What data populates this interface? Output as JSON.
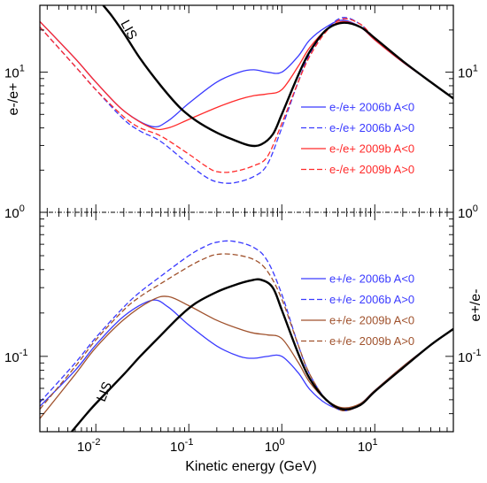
{
  "chart_data": {
    "type": "line",
    "xlabel": "Kinetic energy (GeV)",
    "x_scale": "log",
    "xlim": [
      0.0025,
      70
    ],
    "x_ticks": [
      {
        "value": 0.01,
        "base": "10",
        "exp": "-2"
      },
      {
        "value": 0.1,
        "base": "10",
        "exp": "-1"
      },
      {
        "value": 1,
        "base": "10",
        "exp": "0"
      },
      {
        "value": 10,
        "base": "10",
        "exp": "1"
      }
    ],
    "grid": false,
    "reference_line": {
      "y": 1,
      "style": "dash-dot"
    },
    "colors": {
      "y2006": "#3a3aff",
      "y2009_top": "#ff2a2a",
      "y2009_bottom": "#a0522d",
      "lis": "#000000"
    },
    "panels": [
      {
        "id": "top",
        "ylabel": "e-/e+",
        "y_scale": "log",
        "ylim": [
          1,
          30
        ],
        "y_ticks": [
          {
            "value": 1,
            "base": "10",
            "exp": "0"
          },
          {
            "value": 10,
            "base": "10",
            "exp": "1"
          }
        ],
        "lis_label": "LIS",
        "series": [
          {
            "name": "e-/e+ 2006b A<0",
            "color": "#3a3aff",
            "dash": false,
            "x": [
              0.0025,
              0.006,
              0.01,
              0.02,
              0.04,
              0.06,
              0.1,
              0.2,
              0.35,
              0.5,
              0.7,
              1.0,
              1.5,
              2,
              3,
              4.5,
              7,
              10,
              20,
              40,
              70
            ],
            "y": [
              23,
              12.5,
              8.5,
              5.3,
              4.1,
              4.5,
              6.0,
              8.5,
              10.0,
              10.4,
              10.0,
              10.0,
              13,
              17,
              21,
              23.5,
              21,
              17,
              11.8,
              8.5,
              6.5
            ]
          },
          {
            "name": "e-/e+ 2006b A>0",
            "color": "#3a3aff",
            "dash": true,
            "x": [
              0.0025,
              0.006,
              0.01,
              0.02,
              0.03,
              0.05,
              0.1,
              0.15,
              0.2,
              0.3,
              0.5,
              0.7,
              1.0,
              1.5,
              2,
              3,
              4.5,
              7,
              10,
              20,
              40,
              70
            ],
            "y": [
              21,
              11,
              7.5,
              4.6,
              3.8,
              3.2,
              2.2,
              1.8,
              1.65,
              1.62,
              1.8,
              2.2,
              4.0,
              8.5,
              13.5,
              20,
              24.5,
              22,
              17.5,
              12,
              8.5,
              6.5
            ]
          },
          {
            "name": "e-/e+ 2009b A<0",
            "color": "#ff2a2a",
            "dash": false,
            "x": [
              0.0025,
              0.006,
              0.01,
              0.02,
              0.04,
              0.06,
              0.1,
              0.2,
              0.35,
              0.5,
              0.7,
              1.0,
              1.5,
              2,
              3,
              4.5,
              7,
              10,
              20,
              40,
              70
            ],
            "y": [
              23,
              12.5,
              8.5,
              5.3,
              4.0,
              4.0,
              4.6,
              5.6,
              6.4,
              6.8,
              7.0,
              7.5,
              11,
              15,
              20,
              23,
              21,
              17,
              11.8,
              8.5,
              6.5
            ]
          },
          {
            "name": "e-/e+ 2009b A>0",
            "color": "#ff2a2a",
            "dash": true,
            "x": [
              0.0025,
              0.006,
              0.01,
              0.02,
              0.03,
              0.05,
              0.1,
              0.15,
              0.2,
              0.3,
              0.5,
              0.7,
              1.0,
              1.5,
              2,
              3,
              4.5,
              7,
              10,
              20,
              40,
              70
            ],
            "y": [
              21,
              11,
              7.5,
              4.8,
              4.0,
              3.5,
              2.6,
              2.15,
              1.95,
              1.95,
              2.15,
              2.5,
              4.3,
              8.5,
              13,
              19.5,
              24,
              22,
              17.5,
              12,
              8.5,
              6.5
            ]
          },
          {
            "name": "",
            "color": "#000000",
            "dash": false,
            "lis": true,
            "x": [
              0.012,
              0.015,
              0.02,
              0.03,
              0.05,
              0.08,
              0.12,
              0.2,
              0.3,
              0.45,
              0.6,
              0.8,
              1.0,
              1.5,
              2,
              3,
              4.5,
              7,
              10,
              20,
              40,
              70
            ],
            "y": [
              30,
              25,
              19,
              12.5,
              8.0,
              5.6,
              4.5,
              3.7,
              3.3,
              3.0,
              3.05,
              3.6,
              5.0,
              9.5,
              14,
              20,
              22.5,
              21,
              17.5,
              12,
              8.5,
              6.5
            ]
          }
        ]
      },
      {
        "id": "bottom",
        "ylabel": "e+/e-",
        "y_scale": "log",
        "ylim": [
          0.03,
          1
        ],
        "y_ticks": [
          {
            "value": 0.1,
            "base": "10",
            "exp": "-1"
          },
          {
            "value": 1,
            "base": "10",
            "exp": "0"
          }
        ],
        "lis_label": "LIS",
        "series": [
          {
            "name": "e+/e- 2006b A<0",
            "color": "#3a3aff",
            "dash": false,
            "x": [
              0.0025,
              0.006,
              0.01,
              0.02,
              0.04,
              0.06,
              0.1,
              0.2,
              0.35,
              0.5,
              0.7,
              1.0,
              1.5,
              2,
              3,
              4.5,
              7,
              10,
              20,
              40,
              70
            ],
            "y": [
              0.045,
              0.08,
              0.12,
              0.19,
              0.245,
              0.22,
              0.165,
              0.118,
              0.1,
              0.097,
              0.1,
              0.1,
              0.077,
              0.059,
              0.047,
              0.043,
              0.047,
              0.058,
              0.085,
              0.12,
              0.155
            ]
          },
          {
            "name": "e+/e- 2006b A>0",
            "color": "#3a3aff",
            "dash": true,
            "x": [
              0.0025,
              0.006,
              0.01,
              0.02,
              0.03,
              0.05,
              0.1,
              0.15,
              0.2,
              0.3,
              0.5,
              0.7,
              1.0,
              1.5,
              2,
              3,
              4.5,
              7,
              10,
              20,
              40,
              70
            ],
            "y": [
              0.048,
              0.09,
              0.135,
              0.22,
              0.28,
              0.36,
              0.5,
              0.58,
              0.62,
              0.63,
              0.57,
              0.46,
              0.27,
              0.12,
              0.075,
              0.05,
              0.042,
              0.046,
              0.057,
              0.083,
              0.12,
              0.155
            ]
          },
          {
            "name": "e+/e- 2009b A<0",
            "color": "#a0522d",
            "dash": false,
            "x": [
              0.0025,
              0.006,
              0.01,
              0.02,
              0.04,
              0.06,
              0.1,
              0.2,
              0.35,
              0.5,
              0.7,
              1.0,
              1.5,
              2,
              3,
              4.5,
              7,
              10,
              20,
              40,
              70
            ],
            "y": [
              0.037,
              0.075,
              0.115,
              0.18,
              0.245,
              0.26,
              0.225,
              0.178,
              0.155,
              0.145,
              0.141,
              0.133,
              0.091,
              0.066,
              0.05,
              0.044,
              0.047,
              0.058,
              0.085,
              0.12,
              0.155
            ]
          },
          {
            "name": "e+/e- 2009b A>0",
            "color": "#a0522d",
            "dash": true,
            "x": [
              0.0025,
              0.006,
              0.01,
              0.02,
              0.03,
              0.05,
              0.1,
              0.15,
              0.2,
              0.3,
              0.5,
              0.7,
              1.0,
              1.5,
              2,
              3,
              4.5,
              7,
              10,
              20,
              40,
              70
            ],
            "y": [
              0.043,
              0.085,
              0.13,
              0.21,
              0.26,
              0.32,
              0.42,
              0.48,
              0.51,
              0.51,
              0.47,
              0.39,
              0.25,
              0.12,
              0.075,
              0.05,
              0.042,
              0.046,
              0.057,
              0.083,
              0.12,
              0.155
            ]
          },
          {
            "name": "",
            "color": "#000000",
            "dash": false,
            "lis": true,
            "x": [
              0.0055,
              0.008,
              0.01,
              0.02,
              0.03,
              0.05,
              0.08,
              0.12,
              0.2,
              0.3,
              0.45,
              0.6,
              0.8,
              1.0,
              1.5,
              2,
              3,
              4.5,
              7,
              10,
              20,
              40,
              70
            ],
            "y": [
              0.03,
              0.04,
              0.047,
              0.075,
              0.1,
              0.14,
              0.19,
              0.235,
              0.28,
              0.31,
              0.335,
              0.34,
              0.3,
              0.21,
              0.105,
              0.07,
              0.05,
              0.043,
              0.046,
              0.057,
              0.083,
              0.12,
              0.155
            ]
          }
        ]
      }
    ]
  }
}
